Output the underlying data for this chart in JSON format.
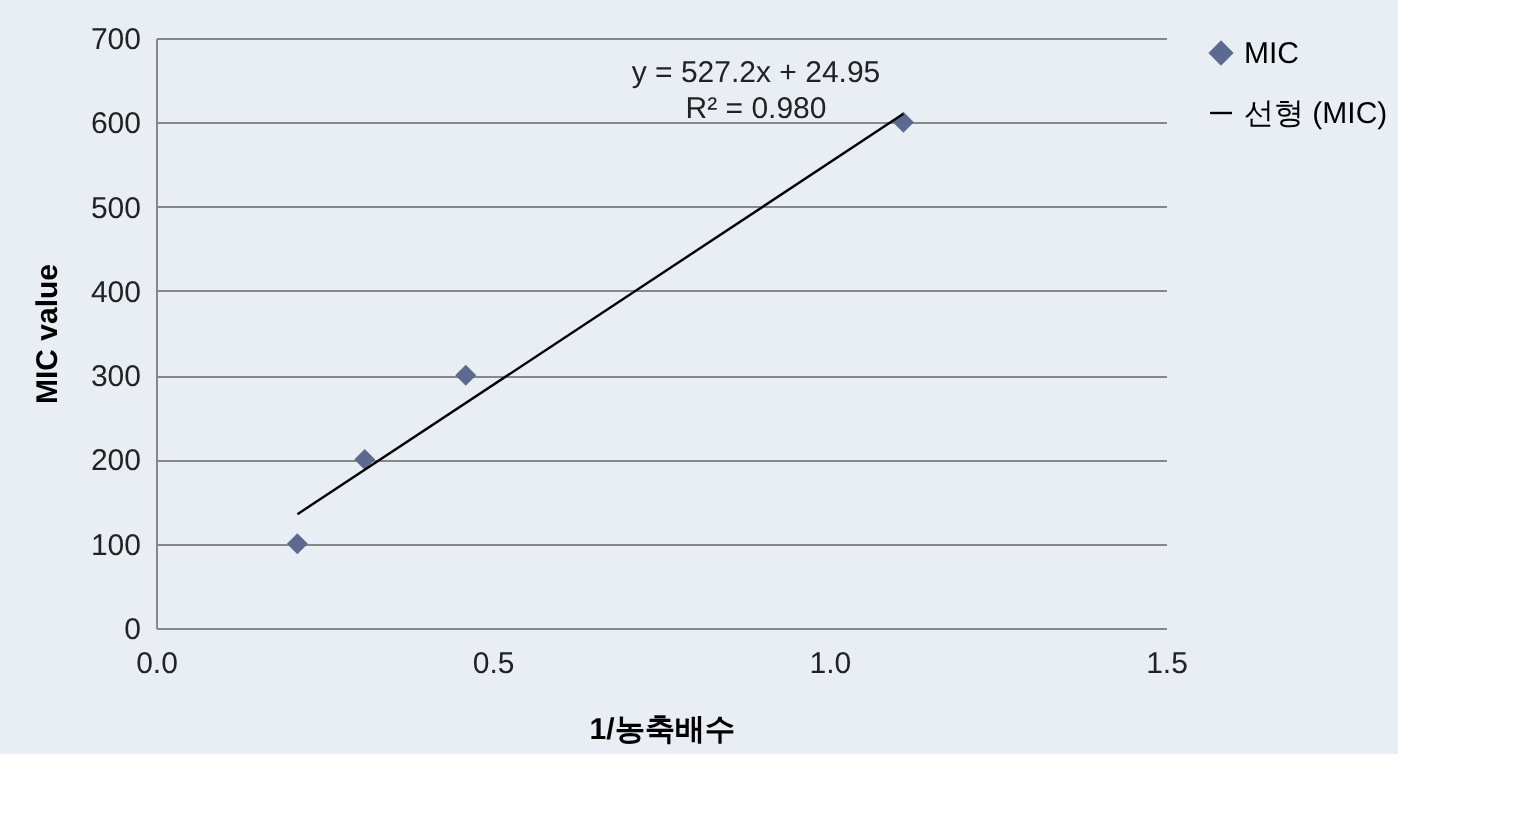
{
  "chart_data": {
    "type": "scatter",
    "xlabel": "1/농축배수",
    "ylabel": "MIC value",
    "series": [
      {
        "name": "MIC",
        "color": "#5d6a8f",
        "marker": "diamond",
        "x": [
          0.21,
          0.31,
          0.46,
          1.11
        ],
        "values": [
          100,
          200,
          300,
          600
        ]
      },
      {
        "name": "선형 (MIC)",
        "type": "line",
        "color": "#000000",
        "line_style": "solid",
        "x": [
          0.21,
          1.11
        ],
        "values": [
          135,
          610
        ]
      }
    ],
    "annotations": [
      "y = 527.2x + 24.95",
      "R² = 0.980"
    ],
    "xlim": [
      0,
      1.5
    ],
    "xticks": [
      {
        "value": 0,
        "label": "0.0"
      },
      {
        "value": 0.5,
        "label": "0.5"
      },
      {
        "value": 1,
        "label": "1.0"
      },
      {
        "value": 1.5,
        "label": "1.5"
      }
    ],
    "ylim": [
      0,
      700
    ],
    "yticks": [
      0,
      100,
      200,
      300,
      400,
      500,
      600,
      700
    ],
    "grid": "y",
    "legend": "right"
  }
}
